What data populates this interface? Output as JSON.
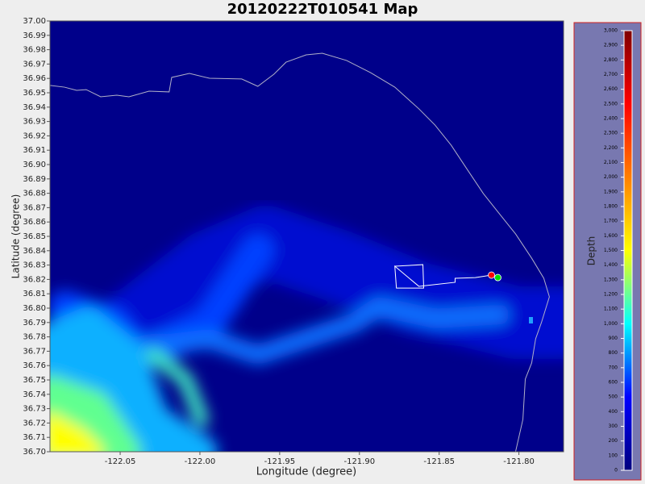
{
  "chart_data": {
    "type": "map",
    "title": "20120222T010541 Map",
    "xlabel": "Longitude (degree)",
    "ylabel": "Latitude (degree)",
    "xlim": [
      -122.094,
      -121.772
    ],
    "ylim": [
      36.7,
      37.0
    ],
    "xticks": [
      -122.05,
      {
        "value": -122.0,
        "label": "-122.00"
      },
      -121.95,
      {
        "value": -121.9,
        "label": "-121.90"
      },
      -121.85,
      {
        "value": -121.8,
        "label": "-121.80"
      }
    ],
    "yticks": [
      {
        "value": 36.7,
        "label": "36.70"
      },
      36.71,
      36.72,
      36.73,
      36.74,
      36.75,
      36.76,
      36.77,
      36.78,
      36.79,
      {
        "value": 36.8,
        "label": "36.80"
      },
      36.81,
      36.82,
      36.83,
      36.84,
      36.85,
      36.86,
      36.87,
      36.88,
      36.89,
      {
        "value": 36.9,
        "label": "36.90"
      },
      36.91,
      36.92,
      36.93,
      36.94,
      36.95,
      36.96,
      36.97,
      36.98,
      36.99,
      {
        "value": 37.0,
        "label": "37.00"
      }
    ],
    "series": [
      {
        "name": "coastline",
        "color": "#b0b0c8",
        "x": [
          -122.094,
          -122.0849,
          -122.0773,
          -122.0713,
          -122.0622,
          -122.0521,
          -122.0445,
          -122.0319,
          -122.0193,
          -122.0177,
          -122.0066,
          -121.994,
          -121.9738,
          -121.9637,
          -121.9536,
          -121.946,
          -121.9334,
          -121.9233,
          -121.9081,
          -121.893,
          -121.8778,
          -121.8627,
          -121.8526,
          -121.8425,
          -121.8324,
          -121.8223,
          -121.8122,
          -121.8021,
          -121.792,
          -121.7844,
          -121.7809,
          -121.7859,
          -121.7895,
          -121.792,
          -121.796,
          -121.7975,
          -121.8021
        ],
        "y": [
          36.9551,
          36.9539,
          36.9517,
          36.9522,
          36.9472,
          36.9483,
          36.9472,
          36.9511,
          36.9506,
          36.9607,
          36.9635,
          36.9601,
          36.9596,
          36.9545,
          36.9629,
          36.9713,
          36.9764,
          36.9775,
          36.9725,
          36.964,
          36.9539,
          36.9388,
          36.9275,
          36.9135,
          36.8966,
          36.8798,
          36.8657,
          36.8517,
          36.8348,
          36.8208,
          36.8079,
          36.7899,
          36.7787,
          36.7618,
          36.7506,
          36.7225,
          36.7
        ]
      },
      {
        "name": "track",
        "color": "#ffffff",
        "x": [
          -121.8778,
          -121.8602,
          -121.8597,
          -121.8768,
          -121.8778,
          -121.8627,
          -121.84,
          -121.84,
          -121.8273,
          -121.8172,
          -121.8132
        ],
        "y": [
          36.8292,
          36.8303,
          36.814,
          36.814,
          36.8292,
          36.8152,
          36.818,
          36.8208,
          36.8213,
          36.823,
          36.8213
        ]
      }
    ],
    "markers": [
      {
        "x": -121.8172,
        "y": 36.823,
        "color": "#ff0000"
      },
      {
        "x": -121.8132,
        "y": 36.8213,
        "color": "#00e000"
      }
    ],
    "colorbar": {
      "label": "Depth",
      "lim": [
        0,
        3000
      ],
      "colors": [
        "#00007f",
        "#0000ff",
        "#00ffff",
        "#ffff00",
        "#ff7f00",
        "#ff0000",
        "#7f0000"
      ],
      "ticks": [
        0,
        100,
        200,
        300,
        400,
        500,
        600,
        700,
        800,
        900,
        {
          "value": 1000,
          "label": "1,000"
        },
        {
          "value": 1100,
          "label": "1,100"
        },
        {
          "value": 1200,
          "label": "1,200"
        },
        {
          "value": 1300,
          "label": "1,300"
        },
        {
          "value": 1400,
          "label": "1,400"
        },
        {
          "value": 1500,
          "label": "1,500"
        },
        {
          "value": 1600,
          "label": "1,600"
        },
        {
          "value": 1700,
          "label": "1,700"
        },
        {
          "value": 1800,
          "label": "1,800"
        },
        {
          "value": 1900,
          "label": "1,900"
        },
        {
          "value": 2000,
          "label": "2,000"
        },
        {
          "value": 2100,
          "label": "2,100"
        },
        {
          "value": 2200,
          "label": "2,200"
        },
        {
          "value": 2300,
          "label": "2,300"
        },
        {
          "value": 2400,
          "label": "2,400"
        },
        {
          "value": 2500,
          "label": "2,500"
        },
        {
          "value": 2600,
          "label": "2,600"
        },
        {
          "value": 2700,
          "label": "2,700"
        },
        {
          "value": 2800,
          "label": "2,800"
        },
        {
          "value": 2900,
          "label": "2,900"
        },
        {
          "value": 3000,
          "label": "3,000"
        }
      ]
    }
  }
}
